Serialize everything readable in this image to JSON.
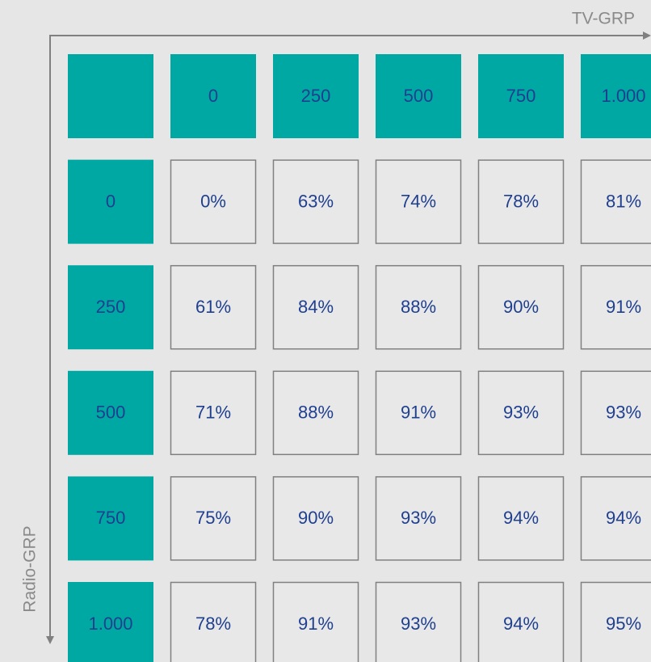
{
  "x_axis_label": "TV-GRP",
  "y_axis_label": "Radio-GRP",
  "table": {
    "columns": [
      "0",
      "250",
      "500",
      "750",
      "1.000"
    ],
    "rows": [
      {
        "label": "0",
        "cells": [
          "0%",
          "63%",
          "74%",
          "78%",
          "81%"
        ]
      },
      {
        "label": "250",
        "cells": [
          "61%",
          "84%",
          "88%",
          "90%",
          "91%"
        ]
      },
      {
        "label": "500",
        "cells": [
          "71%",
          "88%",
          "91%",
          "93%",
          "93%"
        ]
      },
      {
        "label": "750",
        "cells": [
          "75%",
          "90%",
          "93%",
          "94%",
          "94%"
        ]
      },
      {
        "label": "1.000",
        "cells": [
          "78%",
          "91%",
          "93%",
          "94%",
          "95%"
        ]
      }
    ]
  }
}
